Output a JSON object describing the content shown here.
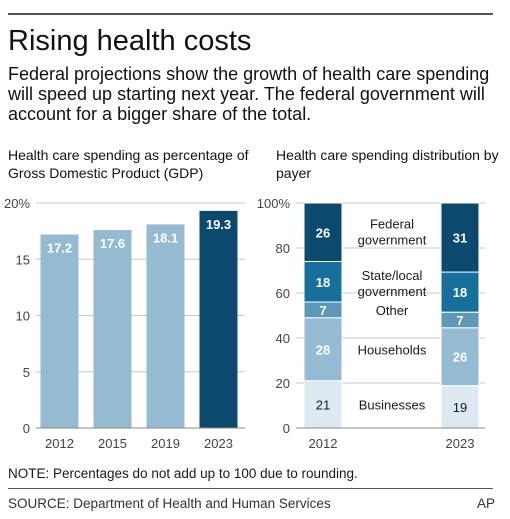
{
  "header": {
    "title": "Rising health costs",
    "subtitle": "Federal projections show the growth of health care spending will speed up starting next year. The federal government will account for a bigger share of the total."
  },
  "chart_data": [
    {
      "type": "bar",
      "title": "Health care spending as percentage of Gross Domestic Product (GDP)",
      "categories": [
        "2012",
        "2015",
        "2019",
        "2023"
      ],
      "values": [
        17.2,
        17.6,
        18.1,
        19.3
      ],
      "value_labels": [
        "17.2",
        "17.6",
        "18.1",
        "19.3"
      ],
      "ylim": [
        0,
        20
      ],
      "yticks": [
        0,
        5,
        10,
        15,
        20
      ],
      "ytick_labels": [
        "0",
        "5",
        "10",
        "15",
        "20%"
      ],
      "grid": true,
      "colors": [
        "#94bbd1",
        "#94bbd1",
        "#94bbd1",
        "#0b4a6e"
      ],
      "label_colors": [
        "#ffffff",
        "#ffffff",
        "#ffffff",
        "#ffffff"
      ]
    },
    {
      "type": "stacked-bar",
      "title": "Health care spending distribution by payer",
      "categories": [
        "2012",
        "2023"
      ],
      "ylim": [
        0,
        100
      ],
      "yticks": [
        0,
        20,
        40,
        60,
        80,
        100
      ],
      "ytick_labels": [
        "0",
        "20",
        "40",
        "60",
        "80",
        "100%"
      ],
      "grid": true,
      "series": [
        {
          "name": "Businesses",
          "values": [
            21,
            19
          ],
          "value_labels": [
            "21",
            "19"
          ],
          "color": "#dce9f1",
          "label_color": "#1a1a1a"
        },
        {
          "name": "Households",
          "values": [
            28,
            26
          ],
          "value_labels": [
            "28",
            "26"
          ],
          "color": "#94bbd1",
          "label_color": "#ffffff"
        },
        {
          "name": "Other",
          "values": [
            7,
            7
          ],
          "value_labels": [
            "7",
            "7"
          ],
          "color": "#5c98b8",
          "label_color": "#ffffff"
        },
        {
          "name": "State/local government",
          "values": [
            18,
            18
          ],
          "value_labels": [
            "18",
            "18"
          ],
          "color": "#17709b",
          "label_color": "#ffffff"
        },
        {
          "name": "Federal government",
          "values": [
            26,
            31
          ],
          "value_labels": [
            "26",
            "31"
          ],
          "color": "#0b4a6e",
          "label_color": "#ffffff"
        }
      ]
    }
  ],
  "footer": {
    "note": "NOTE: Percentages do not add up to 100 due to rounding.",
    "source": "SOURCE: Department of Health and Human Services",
    "credit": "AP"
  },
  "colors": {
    "grid": "#c8c8c8",
    "axis": "#888888",
    "rule": "#555555"
  }
}
